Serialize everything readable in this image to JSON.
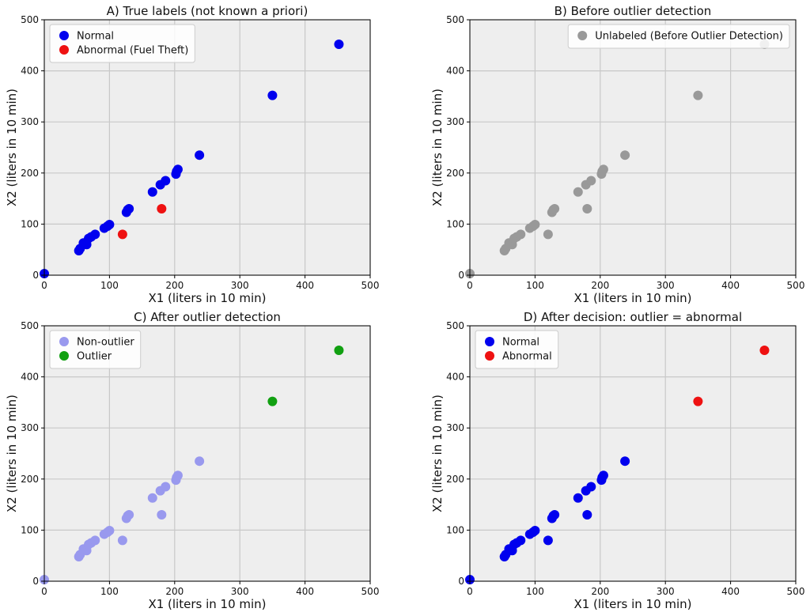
{
  "panels": [
    {
      "title": "A) True labels (not known a priori)",
      "xlabel": "X1 (liters in 10 min)",
      "ylabel": "X2 (liters in 10 min)",
      "legend_position": "top-left",
      "legend": [
        {
          "label": "Normal",
          "color": "#0000ee"
        },
        {
          "label": "Abnormal (Fuel Theft)",
          "color": "#ee1111"
        }
      ],
      "series": [
        {
          "name": "Normal",
          "color": "#0000ee",
          "points": [
            [
              0,
              3
            ],
            [
              53,
              48
            ],
            [
              55,
              52
            ],
            [
              60,
              63
            ],
            [
              65,
              60
            ],
            [
              68,
              72
            ],
            [
              72,
              75
            ],
            [
              78,
              80
            ],
            [
              92,
              92
            ],
            [
              97,
              96
            ],
            [
              100,
              99
            ],
            [
              126,
              123
            ],
            [
              128,
              128
            ],
            [
              130,
              130
            ],
            [
              166,
              163
            ],
            [
              178,
              177
            ],
            [
              186,
              185
            ],
            [
              202,
              198
            ],
            [
              203,
              203
            ],
            [
              205,
              207
            ],
            [
              238,
              235
            ],
            [
              350,
              352
            ],
            [
              452,
              452
            ]
          ]
        },
        {
          "name": "Abnormal (Fuel Theft)",
          "color": "#ee1111",
          "points": [
            [
              120,
              80
            ],
            [
              180,
              130
            ]
          ]
        }
      ]
    },
    {
      "title": "B) Before outlier detection",
      "xlabel": "X1 (liters in 10 min)",
      "ylabel": "X2 (liters in 10 min)",
      "legend_position": "top-right",
      "legend": [
        {
          "label": "Unlabeled (Before Outlier Detection)",
          "color": "#999999"
        }
      ],
      "series": [
        {
          "name": "Unlabeled (Before Outlier Detection)",
          "color": "#999999",
          "points": [
            [
              0,
              3
            ],
            [
              53,
              48
            ],
            [
              55,
              52
            ],
            [
              60,
              63
            ],
            [
              65,
              60
            ],
            [
              68,
              72
            ],
            [
              72,
              75
            ],
            [
              78,
              80
            ],
            [
              92,
              92
            ],
            [
              97,
              96
            ],
            [
              100,
              99
            ],
            [
              120,
              80
            ],
            [
              126,
              123
            ],
            [
              128,
              128
            ],
            [
              130,
              130
            ],
            [
              166,
              163
            ],
            [
              178,
              177
            ],
            [
              180,
              130
            ],
            [
              186,
              185
            ],
            [
              202,
              198
            ],
            [
              203,
              203
            ],
            [
              205,
              207
            ],
            [
              238,
              235
            ],
            [
              350,
              352
            ],
            [
              452,
              452
            ]
          ]
        }
      ]
    },
    {
      "title": "C) After outlier detection",
      "xlabel": "X1 (liters in 10 min)",
      "ylabel": "X2 (liters in 10 min)",
      "legend_position": "top-left",
      "legend": [
        {
          "label": "Non-outlier",
          "color": "#9999ee"
        },
        {
          "label": "Outlier",
          "color": "#11a011"
        }
      ],
      "series": [
        {
          "name": "Non-outlier",
          "color": "#9999ee",
          "points": [
            [
              0,
              3
            ],
            [
              53,
              48
            ],
            [
              55,
              52
            ],
            [
              60,
              63
            ],
            [
              65,
              60
            ],
            [
              68,
              72
            ],
            [
              72,
              75
            ],
            [
              78,
              80
            ],
            [
              92,
              92
            ],
            [
              97,
              96
            ],
            [
              100,
              99
            ],
            [
              120,
              80
            ],
            [
              126,
              123
            ],
            [
              128,
              128
            ],
            [
              130,
              130
            ],
            [
              166,
              163
            ],
            [
              178,
              177
            ],
            [
              180,
              130
            ],
            [
              186,
              185
            ],
            [
              202,
              198
            ],
            [
              203,
              203
            ],
            [
              205,
              207
            ],
            [
              238,
              235
            ]
          ]
        },
        {
          "name": "Outlier",
          "color": "#11a011",
          "points": [
            [
              350,
              352
            ],
            [
              452,
              452
            ]
          ]
        }
      ]
    },
    {
      "title": "D) After decision: outlier = abnormal",
      "xlabel": "X1 (liters in 10 min)",
      "ylabel": "X2 (liters in 10 min)",
      "legend_position": "top-left",
      "legend": [
        {
          "label": "Normal",
          "color": "#0000ee"
        },
        {
          "label": "Abnormal",
          "color": "#ee1111"
        }
      ],
      "series": [
        {
          "name": "Normal",
          "color": "#0000ee",
          "points": [
            [
              0,
              3
            ],
            [
              53,
              48
            ],
            [
              55,
              52
            ],
            [
              60,
              63
            ],
            [
              65,
              60
            ],
            [
              68,
              72
            ],
            [
              72,
              75
            ],
            [
              78,
              80
            ],
            [
              92,
              92
            ],
            [
              97,
              96
            ],
            [
              100,
              99
            ],
            [
              120,
              80
            ],
            [
              126,
              123
            ],
            [
              128,
              128
            ],
            [
              130,
              130
            ],
            [
              166,
              163
            ],
            [
              178,
              177
            ],
            [
              180,
              130
            ],
            [
              186,
              185
            ],
            [
              202,
              198
            ],
            [
              203,
              203
            ],
            [
              205,
              207
            ],
            [
              238,
              235
            ]
          ]
        },
        {
          "name": "Abnormal",
          "color": "#ee1111",
          "points": [
            [
              350,
              352
            ],
            [
              452,
              452
            ]
          ]
        }
      ]
    }
  ],
  "chart_data": [
    {
      "type": "scatter",
      "title": "A) True labels (not known a priori)",
      "xlabel": "X1 (liters in 10 min)",
      "ylabel": "X2 (liters in 10 min)",
      "xlim": [
        0,
        500
      ],
      "ylim": [
        0,
        500
      ],
      "xticks": [
        0,
        100,
        200,
        300,
        400,
        500
      ],
      "yticks": [
        0,
        100,
        200,
        300,
        400,
        500
      ],
      "grid": true,
      "legend_position": "top-left",
      "series": [
        {
          "name": "Normal",
          "points": [
            [
              0,
              3
            ],
            [
              53,
              48
            ],
            [
              55,
              52
            ],
            [
              60,
              63
            ],
            [
              65,
              60
            ],
            [
              68,
              72
            ],
            [
              72,
              75
            ],
            [
              78,
              80
            ],
            [
              92,
              92
            ],
            [
              97,
              96
            ],
            [
              100,
              99
            ],
            [
              126,
              123
            ],
            [
              128,
              128
            ],
            [
              130,
              130
            ],
            [
              166,
              163
            ],
            [
              178,
              177
            ],
            [
              186,
              185
            ],
            [
              202,
              198
            ],
            [
              203,
              203
            ],
            [
              205,
              207
            ],
            [
              238,
              235
            ],
            [
              350,
              352
            ],
            [
              452,
              452
            ]
          ]
        },
        {
          "name": "Abnormal (Fuel Theft)",
          "points": [
            [
              120,
              80
            ],
            [
              180,
              130
            ]
          ]
        }
      ]
    },
    {
      "type": "scatter",
      "title": "B) Before outlier detection",
      "xlabel": "X1 (liters in 10 min)",
      "ylabel": "X2 (liters in 10 min)",
      "xlim": [
        0,
        500
      ],
      "ylim": [
        0,
        500
      ],
      "xticks": [
        0,
        100,
        200,
        300,
        400,
        500
      ],
      "yticks": [
        0,
        100,
        200,
        300,
        400,
        500
      ],
      "grid": true,
      "legend_position": "top-right",
      "series": [
        {
          "name": "Unlabeled (Before Outlier Detection)",
          "points": [
            [
              0,
              3
            ],
            [
              53,
              48
            ],
            [
              55,
              52
            ],
            [
              60,
              63
            ],
            [
              65,
              60
            ],
            [
              68,
              72
            ],
            [
              72,
              75
            ],
            [
              78,
              80
            ],
            [
              92,
              92
            ],
            [
              97,
              96
            ],
            [
              100,
              99
            ],
            [
              120,
              80
            ],
            [
              126,
              123
            ],
            [
              128,
              128
            ],
            [
              130,
              130
            ],
            [
              166,
              163
            ],
            [
              178,
              177
            ],
            [
              180,
              130
            ],
            [
              186,
              185
            ],
            [
              202,
              198
            ],
            [
              203,
              203
            ],
            [
              205,
              207
            ],
            [
              238,
              235
            ],
            [
              350,
              352
            ],
            [
              452,
              452
            ]
          ]
        }
      ]
    },
    {
      "type": "scatter",
      "title": "C) After outlier detection",
      "xlabel": "X1 (liters in 10 min)",
      "ylabel": "X2 (liters in 10 min)",
      "xlim": [
        0,
        500
      ],
      "ylim": [
        0,
        500
      ],
      "xticks": [
        0,
        100,
        200,
        300,
        400,
        500
      ],
      "yticks": [
        0,
        100,
        200,
        300,
        400,
        500
      ],
      "grid": true,
      "legend_position": "top-left",
      "series": [
        {
          "name": "Non-outlier",
          "points": [
            [
              0,
              3
            ],
            [
              53,
              48
            ],
            [
              55,
              52
            ],
            [
              60,
              63
            ],
            [
              65,
              60
            ],
            [
              68,
              72
            ],
            [
              72,
              75
            ],
            [
              78,
              80
            ],
            [
              92,
              92
            ],
            [
              97,
              96
            ],
            [
              100,
              99
            ],
            [
              120,
              80
            ],
            [
              126,
              123
            ],
            [
              128,
              128
            ],
            [
              130,
              130
            ],
            [
              166,
              163
            ],
            [
              178,
              177
            ],
            [
              180,
              130
            ],
            [
              186,
              185
            ],
            [
              202,
              198
            ],
            [
              203,
              203
            ],
            [
              205,
              207
            ],
            [
              238,
              235
            ]
          ]
        },
        {
          "name": "Outlier",
          "points": [
            [
              350,
              352
            ],
            [
              452,
              452
            ]
          ]
        }
      ]
    },
    {
      "type": "scatter",
      "title": "D) After decision: outlier = abnormal",
      "xlabel": "X1 (liters in 10 min)",
      "ylabel": "X2 (liters in 10 min)",
      "xlim": [
        0,
        500
      ],
      "ylim": [
        0,
        500
      ],
      "xticks": [
        0,
        100,
        200,
        300,
        400,
        500
      ],
      "yticks": [
        0,
        100,
        200,
        300,
        400,
        500
      ],
      "grid": true,
      "legend_position": "top-left",
      "series": [
        {
          "name": "Normal",
          "points": [
            [
              0,
              3
            ],
            [
              53,
              48
            ],
            [
              55,
              52
            ],
            [
              60,
              63
            ],
            [
              65,
              60
            ],
            [
              68,
              72
            ],
            [
              72,
              75
            ],
            [
              78,
              80
            ],
            [
              92,
              92
            ],
            [
              97,
              96
            ],
            [
              100,
              99
            ],
            [
              120,
              80
            ],
            [
              126,
              123
            ],
            [
              128,
              128
            ],
            [
              130,
              130
            ],
            [
              166,
              163
            ],
            [
              178,
              177
            ],
            [
              180,
              130
            ],
            [
              186,
              185
            ],
            [
              202,
              198
            ],
            [
              203,
              203
            ],
            [
              205,
              207
            ],
            [
              238,
              235
            ]
          ]
        },
        {
          "name": "Abnormal",
          "points": [
            [
              350,
              352
            ],
            [
              452,
              452
            ]
          ]
        }
      ]
    }
  ],
  "axes": {
    "xlim": [
      0,
      500
    ],
    "ylim": [
      0,
      500
    ],
    "ticks": [
      0,
      100,
      200,
      300,
      400,
      500
    ],
    "grid": true
  },
  "colors": {
    "plot_background": "#eeeeee",
    "grid": "#c8c8c8",
    "axis": "#000000"
  }
}
